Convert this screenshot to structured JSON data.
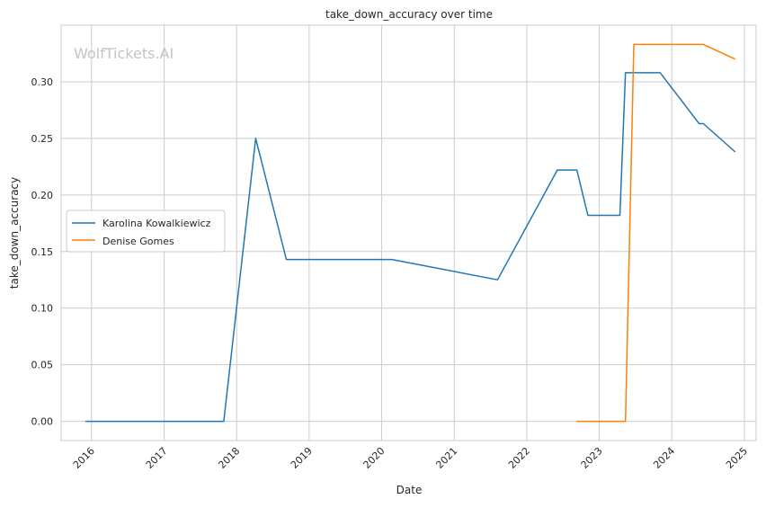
{
  "watermark": "WolfTickets.AI",
  "chart_data": {
    "type": "line",
    "title": "take_down_accuracy over time",
    "xlabel": "Date",
    "ylabel": "take_down_accuracy",
    "xlim": [
      "2015-08-01",
      "2025-03-01"
    ],
    "ylim": [
      -0.017,
      0.35
    ],
    "x_ticks": [
      "2016-01-01",
      "2017-01-01",
      "2018-01-01",
      "2019-01-01",
      "2020-01-01",
      "2021-01-01",
      "2022-01-01",
      "2023-01-01",
      "2024-01-01",
      "2025-01-01"
    ],
    "x_tick_labels": [
      "2016",
      "2017",
      "2018",
      "2019",
      "2020",
      "2021",
      "2022",
      "2023",
      "2024",
      "2025"
    ],
    "y_ticks": [
      0.0,
      0.05,
      0.1,
      0.15,
      0.2,
      0.25,
      0.3
    ],
    "y_tick_labels": [
      "0.00",
      "0.05",
      "0.10",
      "0.15",
      "0.20",
      "0.25",
      "0.30"
    ],
    "grid": true,
    "legend_position": "center-left",
    "series": [
      {
        "name": "Karolina Kowalkiewicz",
        "color": "#1f77b4",
        "points": [
          {
            "x": "2015-12-01",
            "y": 0.0
          },
          {
            "x": "2017-10-28",
            "y": 0.0
          },
          {
            "x": "2018-04-07",
            "y": 0.25
          },
          {
            "x": "2018-09-08",
            "y": 0.143
          },
          {
            "x": "2020-02-22",
            "y": 0.143
          },
          {
            "x": "2021-08-07",
            "y": 0.125
          },
          {
            "x": "2022-06-04",
            "y": 0.222
          },
          {
            "x": "2022-09-10",
            "y": 0.222
          },
          {
            "x": "2022-11-05",
            "y": 0.182
          },
          {
            "x": "2023-04-15",
            "y": 0.182
          },
          {
            "x": "2023-05-13",
            "y": 0.308
          },
          {
            "x": "2023-11-04",
            "y": 0.308
          },
          {
            "x": "2024-05-18",
            "y": 0.263
          },
          {
            "x": "2024-06-08",
            "y": 0.263
          },
          {
            "x": "2024-11-16",
            "y": 0.238
          }
        ]
      },
      {
        "name": "Denise Gomes",
        "color": "#ff7f0e",
        "points": [
          {
            "x": "2022-09-10",
            "y": 0.0
          },
          {
            "x": "2023-05-13",
            "y": 0.0
          },
          {
            "x": "2023-06-24",
            "y": 0.333
          },
          {
            "x": "2024-06-08",
            "y": 0.333
          },
          {
            "x": "2024-11-16",
            "y": 0.32
          }
        ]
      }
    ]
  }
}
